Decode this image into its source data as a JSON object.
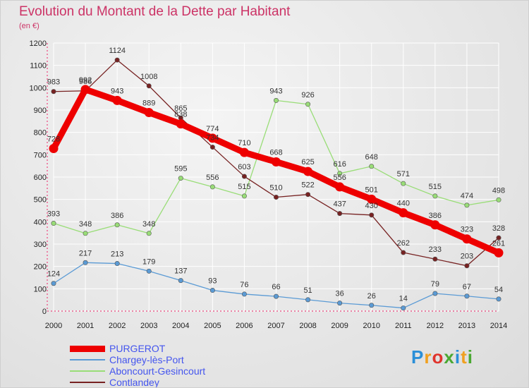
{
  "header": {
    "title": "Evolution du Montant de la Dette par Habitant",
    "subtitle": "(en €)"
  },
  "logo": {
    "letters": [
      {
        "ch": "P",
        "color": "#2a8fd8"
      },
      {
        "ch": "r",
        "color": "#f0a020"
      },
      {
        "ch": "o",
        "color": "#e0342c"
      },
      {
        "ch": "x",
        "color": "#4aa832"
      },
      {
        "ch": "i",
        "color": "#2a8fd8"
      },
      {
        "ch": "t",
        "color": "#f0a020"
      },
      {
        "ch": "i",
        "color": "#4aa832"
      }
    ]
  },
  "chart_data": {
    "type": "line",
    "title": "Evolution du Montant de la Dette par Habitant",
    "ylabel": "(en €)",
    "xlabel": "",
    "x": [
      "2000",
      "2001",
      "2002",
      "2003",
      "2004",
      "2005",
      "2006",
      "2007",
      "2008",
      "2009",
      "2010",
      "2011",
      "2012",
      "2013",
      "2014"
    ],
    "ylim": [
      0,
      1200
    ],
    "yticks": [
      "0",
      "100",
      "200",
      "300",
      "400",
      "500",
      "600",
      "700",
      "800",
      "900",
      "1000",
      "1100",
      "1200"
    ],
    "grid": true,
    "legend_position": "bottom-left",
    "series": [
      {
        "name": "PURGEROT",
        "color": "#ee0000",
        "values": [
          728,
          992,
          943,
          889,
          838,
          774,
          710,
          668,
          625,
          556,
          501,
          440,
          386,
          323,
          261
        ],
        "labels": [
          "728",
          "992",
          "943",
          "889",
          "838",
          "774",
          "710",
          "668",
          "625",
          "556",
          "501",
          "440",
          "386",
          "323",
          "261"
        ]
      },
      {
        "name": "Chargey-lès-Port",
        "color": "#5b9bd5",
        "values": [
          124,
          217,
          213,
          179,
          137,
          93,
          76,
          66,
          51,
          36,
          26,
          14,
          79,
          67,
          54
        ],
        "labels": [
          "124",
          "217",
          "213",
          "179",
          "137",
          "93",
          "76",
          "66",
          "51",
          "36",
          "26",
          "14",
          "79",
          "67",
          "54"
        ]
      },
      {
        "name": "Aboncourt-Gesincourt",
        "color": "#99dd77",
        "values": [
          393,
          348,
          386,
          348,
          595,
          556,
          515,
          943,
          926,
          616,
          648,
          571,
          515,
          474,
          498
        ],
        "labels": [
          "393",
          "348",
          "386",
          "348",
          "595",
          "556",
          "515",
          "943",
          "926",
          "616",
          "648",
          "571",
          "515",
          "474",
          "498"
        ]
      },
      {
        "name": "Contlandey",
        "color": "#772222",
        "values": [
          983,
          986,
          1124,
          1008,
          865,
          734,
          603,
          510,
          522,
          437,
          430,
          262,
          233,
          203,
          328
        ],
        "labels": [
          "983",
          "986",
          "1124",
          "1008",
          "865",
          "734",
          "603",
          "510",
          "522",
          "437",
          "430",
          "262",
          "233",
          "203",
          "328"
        ]
      }
    ]
  }
}
